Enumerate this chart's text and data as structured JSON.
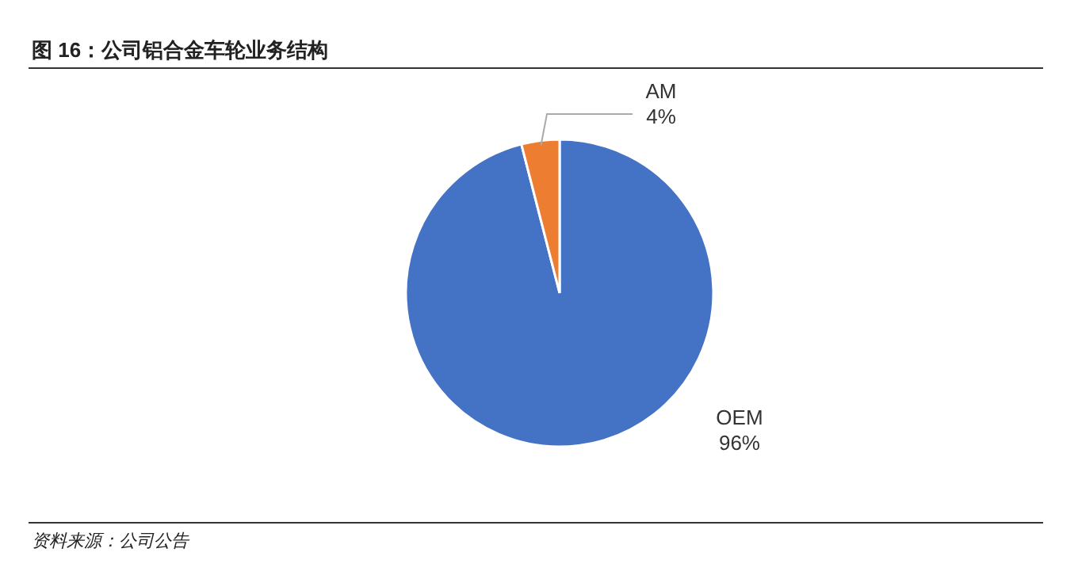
{
  "chart_data": {
    "type": "pie",
    "title": "图 16：公司铝合金车轮业务结构",
    "categories": [
      "OEM",
      "AM"
    ],
    "values": [
      96,
      4
    ],
    "colors": [
      "#4472c4",
      "#ed7d31"
    ],
    "value_labels": [
      "96%",
      "4%"
    ],
    "legend": false,
    "annotations": [
      "资料来源：公司公告"
    ]
  }
}
